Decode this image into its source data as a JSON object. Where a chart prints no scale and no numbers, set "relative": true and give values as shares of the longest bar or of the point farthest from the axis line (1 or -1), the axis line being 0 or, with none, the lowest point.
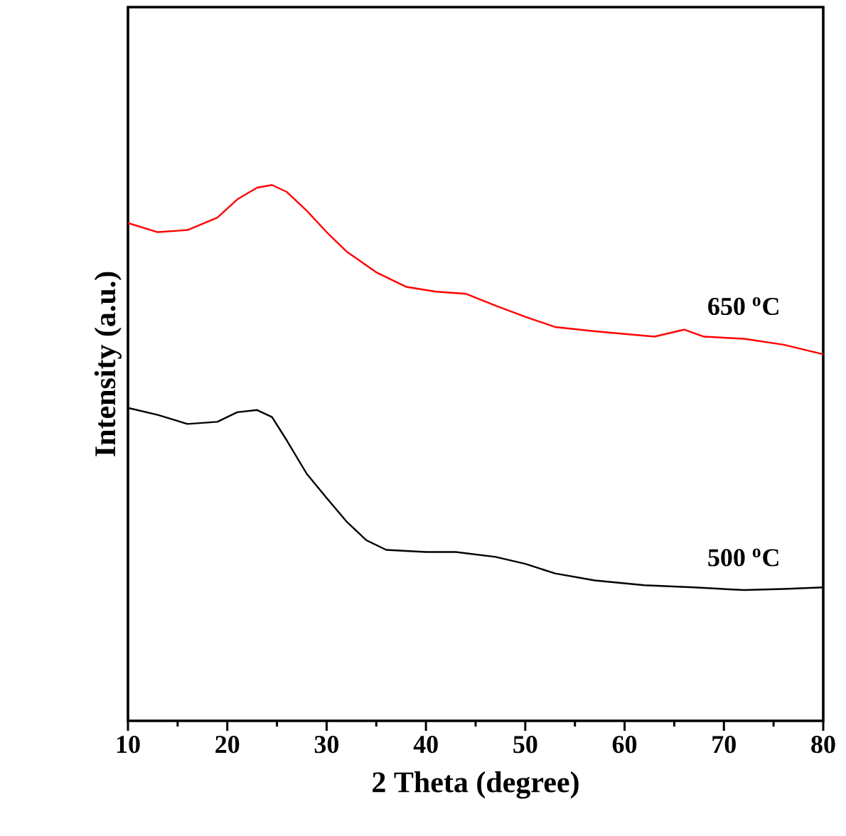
{
  "chart_data": {
    "type": "line",
    "relative": true,
    "xlabel": "2 Theta (degree)",
    "ylabel": "Intensity (a.u.)",
    "xlim": [
      10,
      80
    ],
    "xticks": [
      10,
      20,
      30,
      40,
      50,
      60,
      70,
      80
    ],
    "grid": false,
    "legend": false,
    "marker": "none",
    "line_style": "solid",
    "series": [
      {
        "name": "650 $^{o}$C",
        "color": "#ff0000",
        "x": [
          10,
          13,
          16,
          19,
          21,
          23,
          24.5,
          26,
          28,
          30,
          32,
          35,
          38,
          41,
          44,
          47,
          50,
          53,
          57,
          60,
          63,
          66,
          68,
          72,
          76,
          80
        ],
        "values": [
          0.929,
          0.912,
          0.916,
          0.939,
          0.973,
          0.995,
          1.0,
          0.987,
          0.952,
          0.912,
          0.876,
          0.837,
          0.81,
          0.801,
          0.797,
          0.775,
          0.754,
          0.735,
          0.727,
          0.722,
          0.717,
          0.73,
          0.717,
          0.713,
          0.702,
          0.684
        ]
      },
      {
        "name": "500 $^{o}$C",
        "color": "#000000",
        "x": [
          10,
          13,
          16,
          19,
          21,
          23,
          24.5,
          26,
          28,
          30,
          32,
          34,
          36,
          40,
          43,
          47,
          50,
          53,
          57,
          62,
          67,
          72,
          76,
          80
        ],
        "values": [
          0.584,
          0.571,
          0.554,
          0.558,
          0.576,
          0.58,
          0.567,
          0.523,
          0.461,
          0.416,
          0.372,
          0.337,
          0.319,
          0.315,
          0.315,
          0.306,
          0.293,
          0.275,
          0.262,
          0.253,
          0.249,
          0.244,
          0.246,
          0.249
        ]
      }
    ]
  }
}
